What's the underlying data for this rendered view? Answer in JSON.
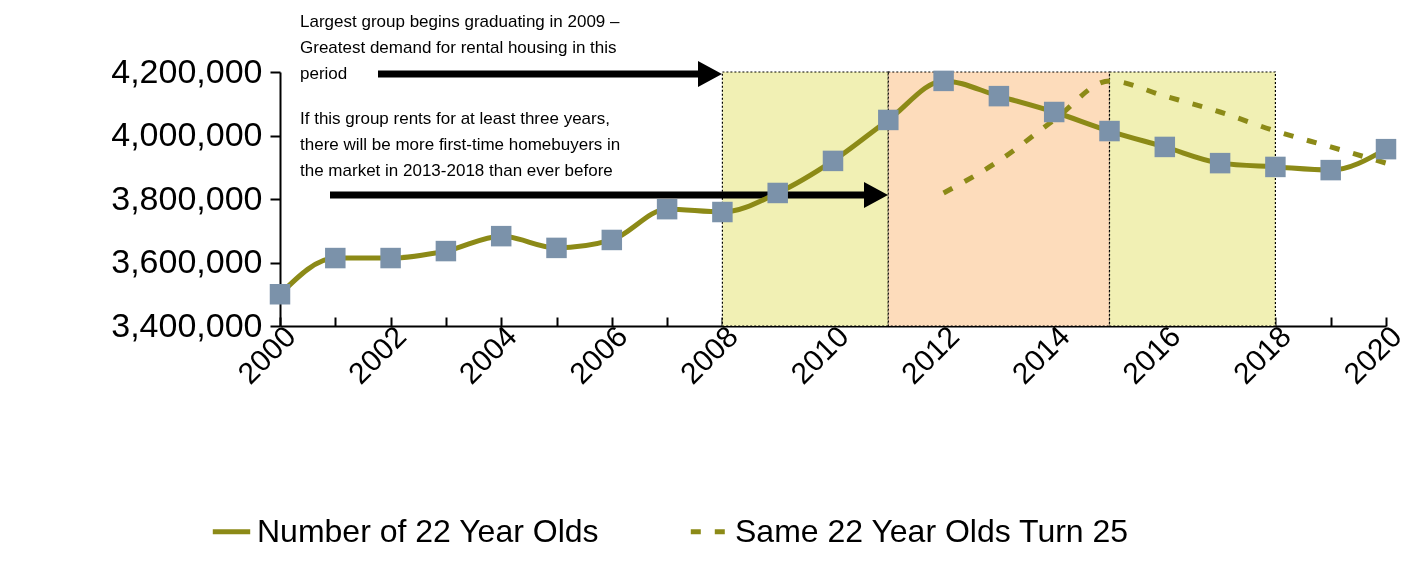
{
  "chart_data": {
    "type": "line",
    "x": [
      2000,
      2001,
      2002,
      2003,
      2004,
      2005,
      2006,
      2007,
      2008,
      2009,
      2010,
      2011,
      2012,
      2013,
      2014,
      2015,
      2016,
      2017,
      2018,
      2019,
      2020
    ],
    "series": [
      {
        "name": "Number of 22 Year Olds",
        "color": "#8c8a17",
        "marker": "square",
        "line_style": "solid",
        "values": [
          3500000,
          3614000,
          3614000,
          3636000,
          3683000,
          3646000,
          3671000,
          3768000,
          3759000,
          3819000,
          3920000,
          4049000,
          4172000,
          4124000,
          4074000,
          4014000,
          3964000,
          3913000,
          3901000,
          3891000,
          3957000
        ]
      },
      {
        "name": "Same 22 Year Olds Turn 25",
        "color": "#8c8a17",
        "marker": "none",
        "line_style": "dashed",
        "x": [
          2012,
          2013,
          2014,
          2015,
          2016,
          2017,
          2018,
          2019,
          2020
        ],
        "values": [
          3819000,
          3920000,
          4049000,
          4172000,
          4124000,
          4074000,
          4014000,
          3964000,
          3913000
        ]
      }
    ],
    "xlim": [
      2000,
      2020
    ],
    "xticks": [
      2000,
      {
        "value": 2001,
        "label": null
      },
      2002,
      {
        "value": 2003,
        "label": null
      },
      2004,
      {
        "value": 2005,
        "label": null
      },
      2006,
      {
        "value": 2007,
        "label": null
      },
      2008,
      {
        "value": 2009,
        "label": null
      },
      2010,
      {
        "value": 2011,
        "label": null
      },
      2012,
      {
        "value": 2013,
        "label": null
      },
      2014,
      {
        "value": 2015,
        "label": null
      },
      2016,
      {
        "value": 2017,
        "label": null
      },
      2018,
      {
        "value": 2019,
        "label": null
      },
      2020
    ],
    "ylim": [
      3400000,
      4200000
    ],
    "yticks": [
      {
        "value": 3400000,
        "label": "3,400,000"
      },
      {
        "value": 3600000,
        "label": "3,600,000"
      },
      {
        "value": 3800000,
        "label": "3,800,000"
      },
      {
        "value": 4000000,
        "label": "4,000,000"
      },
      {
        "value": 4200000,
        "label": "4,200,000"
      }
    ],
    "bands": [
      {
        "axis": "x",
        "from": 2008,
        "to": 2011,
        "color": "#f1f0b4"
      },
      {
        "axis": "x",
        "from": 2011,
        "to": 2015,
        "color": "#fddcbb"
      },
      {
        "axis": "x",
        "from": 2015,
        "to": 2018,
        "color": "#f1f0b4"
      }
    ],
    "annotations": [
      "Largest group begins graduating in 2009 – Greatest demand for rental housing in this period",
      "If this group rents for at least three years, there will be more first-time homebuyers in the market in 2013-2018 than ever before"
    ],
    "grid": false,
    "legend": "bottom"
  }
}
